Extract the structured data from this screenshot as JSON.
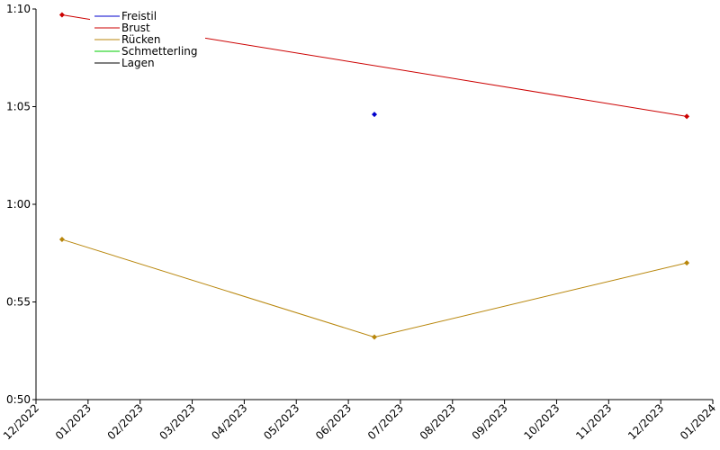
{
  "chart_data": {
    "type": "line",
    "xlim": [
      "12/2022",
      "01/2024"
    ],
    "xticks": [
      "12/2022",
      "01/2023",
      "02/2023",
      "03/2023",
      "04/2023",
      "05/2023",
      "06/2023",
      "07/2023",
      "08/2023",
      "09/2023",
      "10/2023",
      "11/2023",
      "12/2023",
      "01/2024"
    ],
    "ylim": [
      50,
      70
    ],
    "yticks": [
      {
        "value": 50,
        "label": "0:50"
      },
      {
        "value": 55,
        "label": "0:55"
      },
      {
        "value": 60,
        "label": "1:00"
      },
      {
        "value": 65,
        "label": "1:05"
      },
      {
        "value": 70,
        "label": "1:10"
      }
    ],
    "legend": "upper left",
    "series": [
      {
        "name": "Freistil",
        "color": "#0000cc",
        "x": [
          "06/2023"
        ],
        "values": [
          64.6
        ]
      },
      {
        "name": "Brust",
        "color": "#cc0000",
        "x": [
          "12/2022",
          "12/2023"
        ],
        "values": [
          69.7,
          64.5
        ]
      },
      {
        "name": "Rücken",
        "color": "#b8860b",
        "x": [
          "12/2022",
          "06/2023",
          "12/2023"
        ],
        "values": [
          58.2,
          53.2,
          57.0
        ]
      },
      {
        "name": "Schmetterling",
        "color": "#00cc00",
        "x": [],
        "values": []
      },
      {
        "name": "Lagen",
        "color": "#000000",
        "x": [],
        "values": []
      }
    ]
  }
}
